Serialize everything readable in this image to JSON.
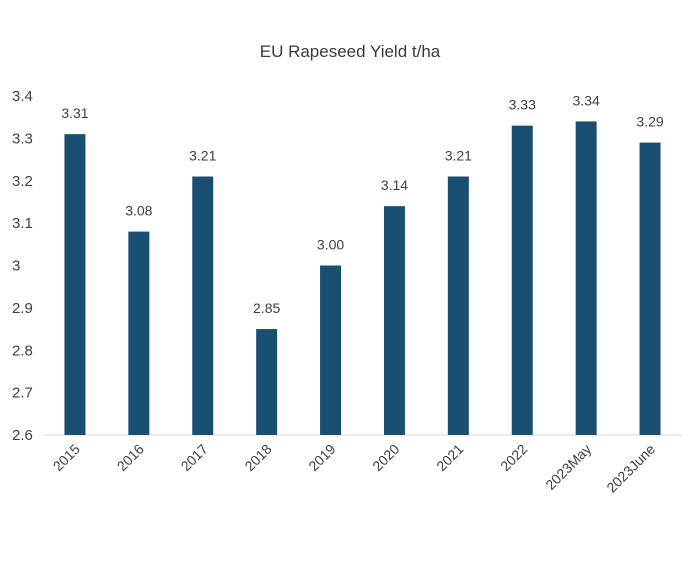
{
  "chart_data": {
    "type": "bar",
    "title": "EU Rapeseed Yield t/ha",
    "xlabel": "",
    "ylabel": "",
    "categories": [
      "2015",
      "2016",
      "2017",
      "2018",
      "2019",
      "2020",
      "2021",
      "2022",
      "2023May",
      "2023June"
    ],
    "values": [
      3.31,
      3.08,
      3.21,
      2.85,
      3.0,
      3.14,
      3.21,
      3.33,
      3.34,
      3.29
    ],
    "data_labels": [
      "3.31",
      "3.08",
      "3.21",
      "2.85",
      "3.00",
      "3.14",
      "3.21",
      "3.33",
      "3.34",
      "3.29"
    ],
    "ylim": [
      2.6,
      3.4
    ],
    "yticks": [
      "2.6",
      "2.7",
      "2.8",
      "2.9",
      "3",
      "3.1",
      "3.2",
      "3.3",
      "3.4"
    ],
    "grid": false,
    "legend": "none",
    "colors": {
      "bar": "#1b4f72",
      "axis": "#d9d9d9",
      "text": "#404040"
    }
  }
}
